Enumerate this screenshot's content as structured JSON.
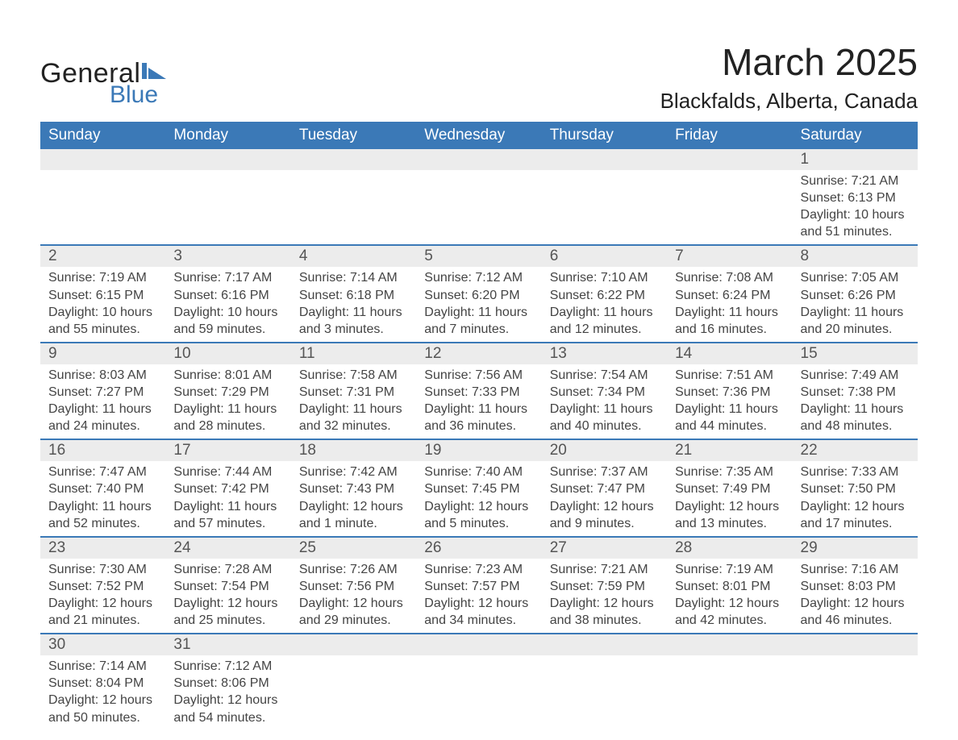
{
  "brand": {
    "general": "General",
    "blue": "Blue",
    "shape_color": "#3b79b7"
  },
  "header": {
    "title": "March 2025",
    "location": "Blackfalds, Alberta, Canada"
  },
  "colors": {
    "header_bg": "#3b79b7",
    "header_text": "#ffffff",
    "daynum_bg": "#ececec",
    "text": "#444444",
    "border": "#3b79b7"
  },
  "weekdays": [
    "Sunday",
    "Monday",
    "Tuesday",
    "Wednesday",
    "Thursday",
    "Friday",
    "Saturday"
  ],
  "weeks": [
    [
      null,
      null,
      null,
      null,
      null,
      null,
      {
        "n": "1",
        "sunrise": "Sunrise: 7:21 AM",
        "sunset": "Sunset: 6:13 PM",
        "d1": "Daylight: 10 hours",
        "d2": "and 51 minutes."
      }
    ],
    [
      {
        "n": "2",
        "sunrise": "Sunrise: 7:19 AM",
        "sunset": "Sunset: 6:15 PM",
        "d1": "Daylight: 10 hours",
        "d2": "and 55 minutes."
      },
      {
        "n": "3",
        "sunrise": "Sunrise: 7:17 AM",
        "sunset": "Sunset: 6:16 PM",
        "d1": "Daylight: 10 hours",
        "d2": "and 59 minutes."
      },
      {
        "n": "4",
        "sunrise": "Sunrise: 7:14 AM",
        "sunset": "Sunset: 6:18 PM",
        "d1": "Daylight: 11 hours",
        "d2": "and 3 minutes."
      },
      {
        "n": "5",
        "sunrise": "Sunrise: 7:12 AM",
        "sunset": "Sunset: 6:20 PM",
        "d1": "Daylight: 11 hours",
        "d2": "and 7 minutes."
      },
      {
        "n": "6",
        "sunrise": "Sunrise: 7:10 AM",
        "sunset": "Sunset: 6:22 PM",
        "d1": "Daylight: 11 hours",
        "d2": "and 12 minutes."
      },
      {
        "n": "7",
        "sunrise": "Sunrise: 7:08 AM",
        "sunset": "Sunset: 6:24 PM",
        "d1": "Daylight: 11 hours",
        "d2": "and 16 minutes."
      },
      {
        "n": "8",
        "sunrise": "Sunrise: 7:05 AM",
        "sunset": "Sunset: 6:26 PM",
        "d1": "Daylight: 11 hours",
        "d2": "and 20 minutes."
      }
    ],
    [
      {
        "n": "9",
        "sunrise": "Sunrise: 8:03 AM",
        "sunset": "Sunset: 7:27 PM",
        "d1": "Daylight: 11 hours",
        "d2": "and 24 minutes."
      },
      {
        "n": "10",
        "sunrise": "Sunrise: 8:01 AM",
        "sunset": "Sunset: 7:29 PM",
        "d1": "Daylight: 11 hours",
        "d2": "and 28 minutes."
      },
      {
        "n": "11",
        "sunrise": "Sunrise: 7:58 AM",
        "sunset": "Sunset: 7:31 PM",
        "d1": "Daylight: 11 hours",
        "d2": "and 32 minutes."
      },
      {
        "n": "12",
        "sunrise": "Sunrise: 7:56 AM",
        "sunset": "Sunset: 7:33 PM",
        "d1": "Daylight: 11 hours",
        "d2": "and 36 minutes."
      },
      {
        "n": "13",
        "sunrise": "Sunrise: 7:54 AM",
        "sunset": "Sunset: 7:34 PM",
        "d1": "Daylight: 11 hours",
        "d2": "and 40 minutes."
      },
      {
        "n": "14",
        "sunrise": "Sunrise: 7:51 AM",
        "sunset": "Sunset: 7:36 PM",
        "d1": "Daylight: 11 hours",
        "d2": "and 44 minutes."
      },
      {
        "n": "15",
        "sunrise": "Sunrise: 7:49 AM",
        "sunset": "Sunset: 7:38 PM",
        "d1": "Daylight: 11 hours",
        "d2": "and 48 minutes."
      }
    ],
    [
      {
        "n": "16",
        "sunrise": "Sunrise: 7:47 AM",
        "sunset": "Sunset: 7:40 PM",
        "d1": "Daylight: 11 hours",
        "d2": "and 52 minutes."
      },
      {
        "n": "17",
        "sunrise": "Sunrise: 7:44 AM",
        "sunset": "Sunset: 7:42 PM",
        "d1": "Daylight: 11 hours",
        "d2": "and 57 minutes."
      },
      {
        "n": "18",
        "sunrise": "Sunrise: 7:42 AM",
        "sunset": "Sunset: 7:43 PM",
        "d1": "Daylight: 12 hours",
        "d2": "and 1 minute."
      },
      {
        "n": "19",
        "sunrise": "Sunrise: 7:40 AM",
        "sunset": "Sunset: 7:45 PM",
        "d1": "Daylight: 12 hours",
        "d2": "and 5 minutes."
      },
      {
        "n": "20",
        "sunrise": "Sunrise: 7:37 AM",
        "sunset": "Sunset: 7:47 PM",
        "d1": "Daylight: 12 hours",
        "d2": "and 9 minutes."
      },
      {
        "n": "21",
        "sunrise": "Sunrise: 7:35 AM",
        "sunset": "Sunset: 7:49 PM",
        "d1": "Daylight: 12 hours",
        "d2": "and 13 minutes."
      },
      {
        "n": "22",
        "sunrise": "Sunrise: 7:33 AM",
        "sunset": "Sunset: 7:50 PM",
        "d1": "Daylight: 12 hours",
        "d2": "and 17 minutes."
      }
    ],
    [
      {
        "n": "23",
        "sunrise": "Sunrise: 7:30 AM",
        "sunset": "Sunset: 7:52 PM",
        "d1": "Daylight: 12 hours",
        "d2": "and 21 minutes."
      },
      {
        "n": "24",
        "sunrise": "Sunrise: 7:28 AM",
        "sunset": "Sunset: 7:54 PM",
        "d1": "Daylight: 12 hours",
        "d2": "and 25 minutes."
      },
      {
        "n": "25",
        "sunrise": "Sunrise: 7:26 AM",
        "sunset": "Sunset: 7:56 PM",
        "d1": "Daylight: 12 hours",
        "d2": "and 29 minutes."
      },
      {
        "n": "26",
        "sunrise": "Sunrise: 7:23 AM",
        "sunset": "Sunset: 7:57 PM",
        "d1": "Daylight: 12 hours",
        "d2": "and 34 minutes."
      },
      {
        "n": "27",
        "sunrise": "Sunrise: 7:21 AM",
        "sunset": "Sunset: 7:59 PM",
        "d1": "Daylight: 12 hours",
        "d2": "and 38 minutes."
      },
      {
        "n": "28",
        "sunrise": "Sunrise: 7:19 AM",
        "sunset": "Sunset: 8:01 PM",
        "d1": "Daylight: 12 hours",
        "d2": "and 42 minutes."
      },
      {
        "n": "29",
        "sunrise": "Sunrise: 7:16 AM",
        "sunset": "Sunset: 8:03 PM",
        "d1": "Daylight: 12 hours",
        "d2": "and 46 minutes."
      }
    ],
    [
      {
        "n": "30",
        "sunrise": "Sunrise: 7:14 AM",
        "sunset": "Sunset: 8:04 PM",
        "d1": "Daylight: 12 hours",
        "d2": "and 50 minutes."
      },
      {
        "n": "31",
        "sunrise": "Sunrise: 7:12 AM",
        "sunset": "Sunset: 8:06 PM",
        "d1": "Daylight: 12 hours",
        "d2": "and 54 minutes."
      },
      null,
      null,
      null,
      null,
      null
    ]
  ]
}
